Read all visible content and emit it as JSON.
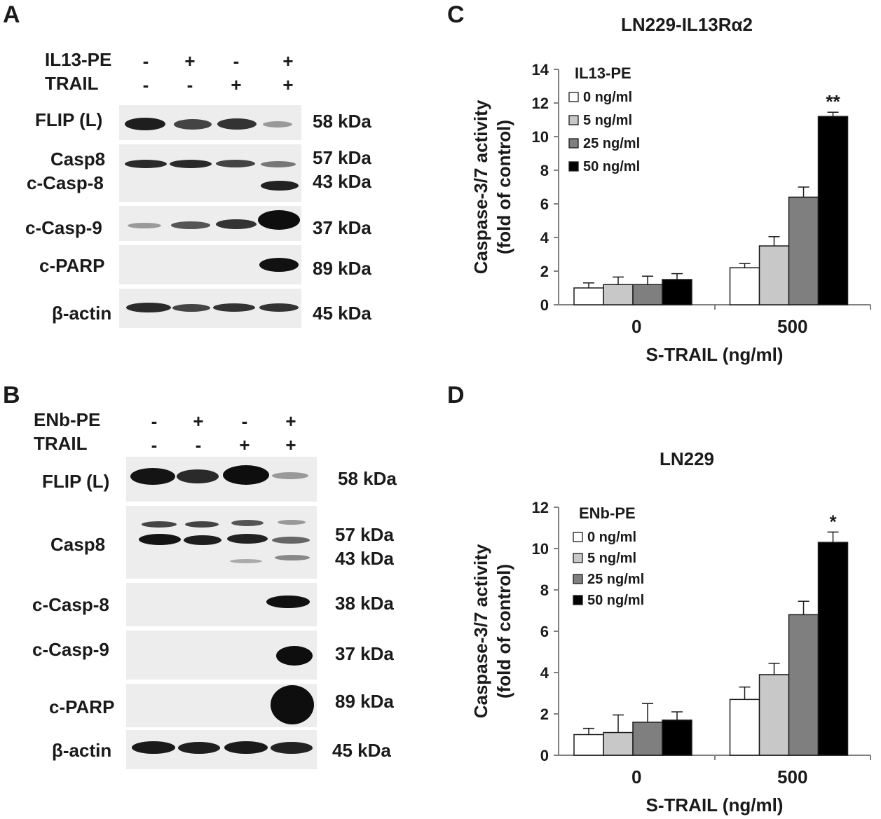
{
  "panels": {
    "A": {
      "label": "A",
      "treatments": [
        {
          "name": "IL13-PE",
          "signs": [
            "-",
            "+",
            "-",
            "+"
          ]
        },
        {
          "name": "TRAIL",
          "signs": [
            "-",
            "-",
            "+",
            "+"
          ]
        }
      ],
      "rows": [
        {
          "label": "FLIP (L)",
          "kda": [
            "58 kDa"
          ]
        },
        {
          "label": "Casp8",
          "label2": "c-Casp-8",
          "kda": [
            "57 kDa",
            "43 kDa"
          ]
        },
        {
          "label": "c-Casp-9",
          "kda": [
            "37 kDa"
          ]
        },
        {
          "label": "c-PARP",
          "kda": [
            "89 kDa"
          ]
        },
        {
          "label": "β-actin",
          "kda": [
            "45 kDa"
          ]
        }
      ]
    },
    "B": {
      "label": "B",
      "treatments": [
        {
          "name": "ENb-PE",
          "signs": [
            "-",
            "+",
            "-",
            "+"
          ]
        },
        {
          "name": "TRAIL",
          "signs": [
            "-",
            "-",
            "+",
            "+"
          ]
        }
      ],
      "rows": [
        {
          "label": "FLIP (L)",
          "kda": [
            "58 kDa"
          ]
        },
        {
          "label": "Casp8",
          "kda": [
            "57 kDa",
            "43 kDa"
          ]
        },
        {
          "label": "c-Casp-8",
          "kda": [
            "38 kDa"
          ]
        },
        {
          "label": "c-Casp-9",
          "kda": [
            "37 kDa"
          ]
        },
        {
          "label": "c-PARP",
          "kda": [
            "89 kDa"
          ]
        },
        {
          "label": "β-actin",
          "kda": [
            "45 kDa"
          ]
        }
      ]
    },
    "C": {
      "label": "C"
    },
    "D": {
      "label": "D"
    }
  },
  "chart_data": [
    {
      "type": "bar",
      "title": "LN229-IL13Rα2",
      "xlabel": "S-TRAIL (ng/ml)",
      "ylabel": "Caspase-3/7 activity (fold of control)",
      "ylabel_lines": [
        "Caspase-3/7 activity",
        "(fold of control)"
      ],
      "ylim": [
        0,
        14
      ],
      "yticks": [
        "0",
        "2",
        "4",
        "6",
        "8",
        "10",
        "12",
        "14"
      ],
      "categories": [
        "0",
        "500"
      ],
      "legend_title": "IL13-PE",
      "legend_position": "top-left",
      "grid": false,
      "series": [
        {
          "name": "0 ng/ml",
          "color": "#ffffff",
          "values": [
            1.0,
            2.2
          ],
          "errors": [
            0.3,
            0.25
          ]
        },
        {
          "name": "5 ng/ml",
          "color": "#c8c8c8",
          "values": [
            1.2,
            3.5
          ],
          "errors": [
            0.45,
            0.55
          ]
        },
        {
          "name": "25 ng/ml",
          "color": "#7f7f7f",
          "values": [
            1.2,
            6.4
          ],
          "errors": [
            0.5,
            0.6
          ]
        },
        {
          "name": "50 ng/ml",
          "color": "#000000",
          "values": [
            1.5,
            11.2
          ],
          "errors": [
            0.35,
            0.25
          ]
        }
      ],
      "annotations": [
        {
          "text": "**",
          "category": "500",
          "series": "50 ng/ml"
        }
      ]
    },
    {
      "type": "bar",
      "title": "LN229",
      "xlabel": "S-TRAIL (ng/ml)",
      "ylabel": "Caspase-3/7 activity (fold of control)",
      "ylabel_lines": [
        "Caspase-3/7 activity",
        "(fold of control)"
      ],
      "ylim": [
        0,
        12
      ],
      "yticks": [
        "0",
        "2",
        "4",
        "6",
        "8",
        "10",
        "12"
      ],
      "categories": [
        "0",
        "500"
      ],
      "legend_title": "ENb-PE",
      "legend_position": "top-left",
      "grid": false,
      "series": [
        {
          "name": "0 ng/ml",
          "color": "#ffffff",
          "values": [
            1.0,
            2.7
          ],
          "errors": [
            0.3,
            0.6
          ]
        },
        {
          "name": "5 ng/ml",
          "color": "#c8c8c8",
          "values": [
            1.1,
            3.9
          ],
          "errors": [
            0.85,
            0.55
          ]
        },
        {
          "name": "25 ng/ml",
          "color": "#7f7f7f",
          "values": [
            1.6,
            6.8
          ],
          "errors": [
            0.9,
            0.65
          ]
        },
        {
          "name": "50 ng/ml",
          "color": "#000000",
          "values": [
            1.7,
            10.3
          ],
          "errors": [
            0.4,
            0.5
          ]
        }
      ],
      "annotations": [
        {
          "text": "*",
          "category": "500",
          "series": "50 ng/ml"
        }
      ]
    }
  ]
}
